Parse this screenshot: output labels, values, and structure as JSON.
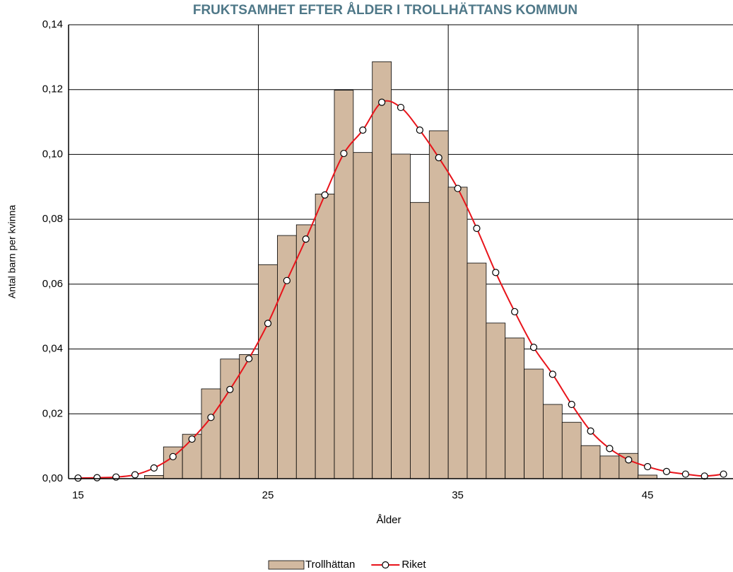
{
  "chart_data": {
    "type": "bar+line",
    "title": "FRUKTSAMHET EFTER ÅLDER I TROLLHÄTTANS KOMMUN",
    "x_label": "Ålder",
    "y_label": "Antal barn per kvinna",
    "categories": [
      "15",
      null,
      null,
      null,
      null,
      null,
      null,
      null,
      null,
      null,
      "25",
      null,
      null,
      null,
      null,
      null,
      null,
      null,
      null,
      null,
      "35",
      null,
      null,
      null,
      null,
      null,
      null,
      null,
      null,
      null,
      "45",
      null,
      null,
      null,
      null
    ],
    "series": [
      {
        "name": "Trollhättan",
        "type": "bar",
        "color": "#d2b9a0",
        "values": [
          0,
          0,
          0,
          0,
          0.001,
          0.0098,
          0.0137,
          0.0277,
          0.0369,
          0.0383,
          0.066,
          0.075,
          0.0783,
          0.0878,
          0.1198,
          0.1006,
          0.1286,
          0.1001,
          0.0852,
          0.1073,
          0.0899,
          0.0665,
          0.048,
          0.0434,
          0.0338,
          0.0229,
          0.0174,
          0.0102,
          0.007,
          0.0078,
          0.0011,
          0,
          0,
          0,
          0
        ]
      },
      {
        "name": "Riket",
        "type": "line",
        "color": "#e8141b",
        "values": [
          0.0002,
          0.0003,
          0.0005,
          0.0012,
          0.0033,
          0.0068,
          0.0122,
          0.0189,
          0.0275,
          0.037,
          0.0479,
          0.0611,
          0.0739,
          0.0875,
          0.1003,
          0.1075,
          0.1161,
          0.1145,
          0.1075,
          0.099,
          0.0895,
          0.0772,
          0.0636,
          0.0515,
          0.0405,
          0.0322,
          0.0229,
          0.0147,
          0.0093,
          0.0058,
          0.0037,
          0.0022,
          0.0014,
          0.0008,
          0.0014
        ]
      }
    ],
    "ylim": [
      0,
      0.14
    ],
    "yticks": [
      {
        "value": 0,
        "label": "0,00"
      },
      {
        "value": 0.02,
        "label": "0,02"
      },
      {
        "value": 0.04,
        "label": "0,04"
      },
      {
        "value": 0.06,
        "label": "0,06"
      },
      {
        "value": 0.08,
        "label": "0,08"
      },
      {
        "value": 0.1,
        "label": "0,10"
      },
      {
        "value": 0.12,
        "label": "0,12"
      },
      {
        "value": 0.14,
        "label": "0,14"
      }
    ],
    "grid": true,
    "legend": "bottom"
  }
}
